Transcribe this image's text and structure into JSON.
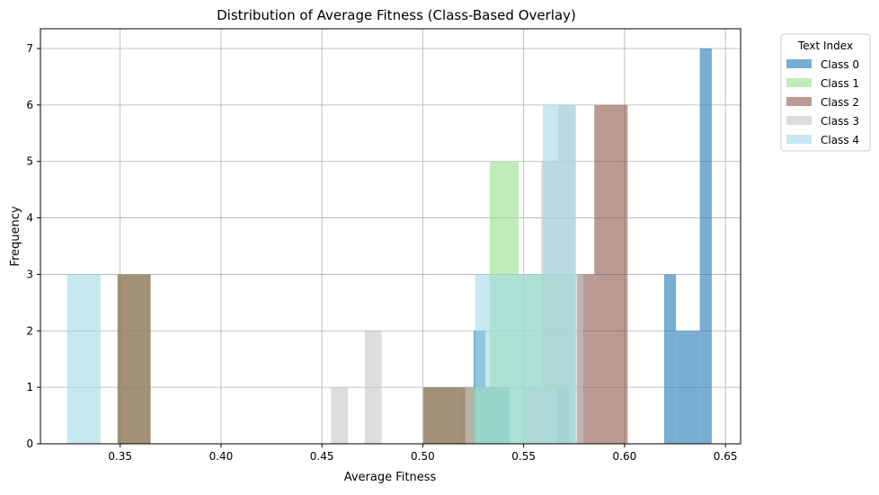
{
  "chart_data": {
    "type": "bar",
    "title": "Distribution of Average Fitness (Class-Based Overlay)",
    "xlabel": "Average Fitness",
    "ylabel": "Frequency",
    "xlim": [
      0.3105,
      0.6575
    ],
    "ylim": [
      0,
      7.35
    ],
    "xticks": [
      "0.35",
      "0.40",
      "0.45",
      "0.50",
      "0.55",
      "0.60",
      "0.65"
    ],
    "xtick_values": [
      0.35,
      0.4,
      0.45,
      0.5,
      0.55,
      0.6,
      0.65
    ],
    "yticks": [
      "0",
      "1",
      "2",
      "3",
      "4",
      "5",
      "6",
      "7"
    ],
    "ytick_values": [
      0,
      1,
      2,
      3,
      4,
      5,
      6,
      7
    ],
    "grid": true,
    "legend": {
      "title": "Text Index",
      "placement": "outside-top-right"
    },
    "series": [
      {
        "name": "Class 0",
        "color": "#1f77b4",
        "opacity": 0.6,
        "bins": [
          {
            "x0": 0.5252,
            "x1": 0.5311,
            "count": 2
          },
          {
            "x0": 0.5311,
            "x1": 0.537,
            "count": 1
          },
          {
            "x0": 0.537,
            "x1": 0.5429,
            "count": 1
          },
          {
            "x0": 0.5665,
            "x1": 0.5724,
            "count": 1
          },
          {
            "x0": 0.6196,
            "x1": 0.6255,
            "count": 3
          },
          {
            "x0": 0.6255,
            "x1": 0.6314,
            "count": 2
          },
          {
            "x0": 0.6314,
            "x1": 0.6373,
            "count": 2
          },
          {
            "x0": 0.6373,
            "x1": 0.6432,
            "count": 7
          }
        ]
      },
      {
        "name": "Class 1",
        "color": "#98df8a",
        "opacity": 0.6,
        "bins": [
          {
            "x0": 0.3487,
            "x1": 0.3651,
            "count": 3
          },
          {
            "x0": 0.5003,
            "x1": 0.5168,
            "count": 1
          },
          {
            "x0": 0.5168,
            "x1": 0.5332,
            "count": 1
          },
          {
            "x0": 0.5332,
            "x1": 0.5475,
            "count": 5
          },
          {
            "x0": 0.5475,
            "x1": 0.5615,
            "count": 3
          },
          {
            "x0": 0.5615,
            "x1": 0.575,
            "count": 3
          }
        ]
      },
      {
        "name": "Class 2",
        "color": "#8c564b",
        "opacity": 0.6,
        "bins": [
          {
            "x0": 0.3487,
            "x1": 0.3651,
            "count": 3
          },
          {
            "x0": 0.5003,
            "x1": 0.5168,
            "count": 1
          },
          {
            "x0": 0.5168,
            "x1": 0.5252,
            "count": 1
          },
          {
            "x0": 0.5765,
            "x1": 0.585,
            "count": 3
          },
          {
            "x0": 0.585,
            "x1": 0.6015,
            "count": 6
          }
        ]
      },
      {
        "name": "Class 3",
        "color": "#c7c7c7",
        "opacity": 0.6,
        "bins": [
          {
            "x0": 0.4545,
            "x1": 0.4587,
            "count": 1
          },
          {
            "x0": 0.4587,
            "x1": 0.4629,
            "count": 1
          },
          {
            "x0": 0.4712,
            "x1": 0.4754,
            "count": 2
          },
          {
            "x0": 0.4754,
            "x1": 0.4796,
            "count": 2
          },
          {
            "x0": 0.5211,
            "x1": 0.5252,
            "count": 1
          },
          {
            "x0": 0.5504,
            "x1": 0.5587,
            "count": 1
          },
          {
            "x0": 0.5587,
            "x1": 0.5671,
            "count": 5
          },
          {
            "x0": 0.5671,
            "x1": 0.5754,
            "count": 6
          },
          {
            "x0": 0.5754,
            "x1": 0.5796,
            "count": 3
          }
        ]
      },
      {
        "name": "Class 4",
        "color": "#9edae5",
        "opacity": 0.6,
        "bins": [
          {
            "x0": 0.3237,
            "x1": 0.3403,
            "count": 3
          },
          {
            "x0": 0.526,
            "x1": 0.534,
            "count": 3
          },
          {
            "x0": 0.534,
            "x1": 0.548,
            "count": 3
          },
          {
            "x0": 0.548,
            "x1": 0.5595,
            "count": 3
          },
          {
            "x0": 0.5595,
            "x1": 0.569,
            "count": 6
          },
          {
            "x0": 0.569,
            "x1": 0.576,
            "count": 6
          }
        ]
      }
    ]
  }
}
